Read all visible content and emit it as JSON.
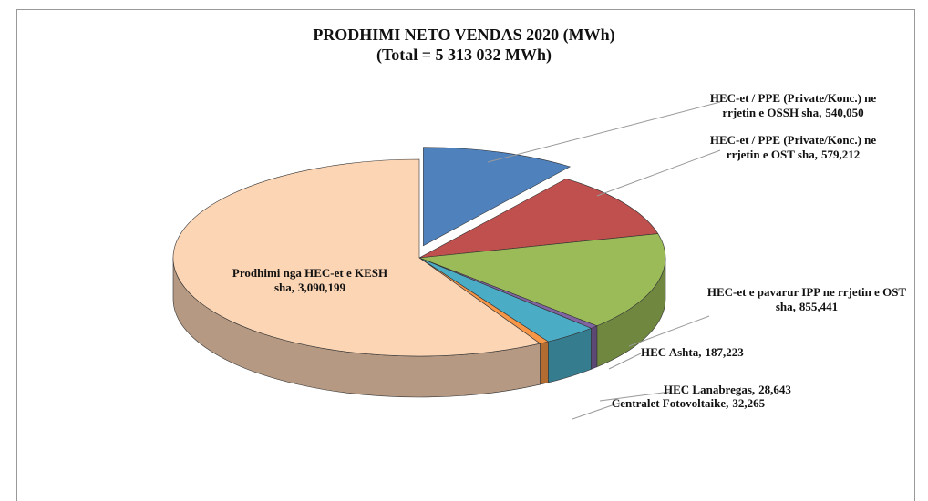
{
  "chart_data": {
    "type": "pie3d",
    "title": "PRODHIMI NETO VENDAS 2020  (MWh)",
    "subtitle": "(Total = 5 313 032 MWh)",
    "categories": [
      "HEC-et / PPE (Private/Konc.) ne rrjetin e OSSH sha,",
      "HEC-et / PPE (Private/Konc.) ne rrjetin e OST sha,",
      "HEC-et e pavarur IPP ne rrjetin e OST sha,",
      "HEC Lanabregas,",
      "HEC Ashta,",
      "Centralet Fotovoltaike,",
      "Prodhimi nga HEC-et e KESH sha,"
    ],
    "values": [
      540050,
      579212,
      855441,
      28643,
      187223,
      32265,
      3090199
    ],
    "value_labels": [
      "540,050",
      "579,212",
      "855,441",
      "28,643",
      "187,223",
      "32,265",
      "3,090,199"
    ],
    "colors": [
      "#4f81bd",
      "#c0504d",
      "#9bbb59",
      "#8064a2",
      "#4bacc6",
      "#f79646",
      "#fcd5b5"
    ],
    "exploded": [
      0
    ]
  }
}
